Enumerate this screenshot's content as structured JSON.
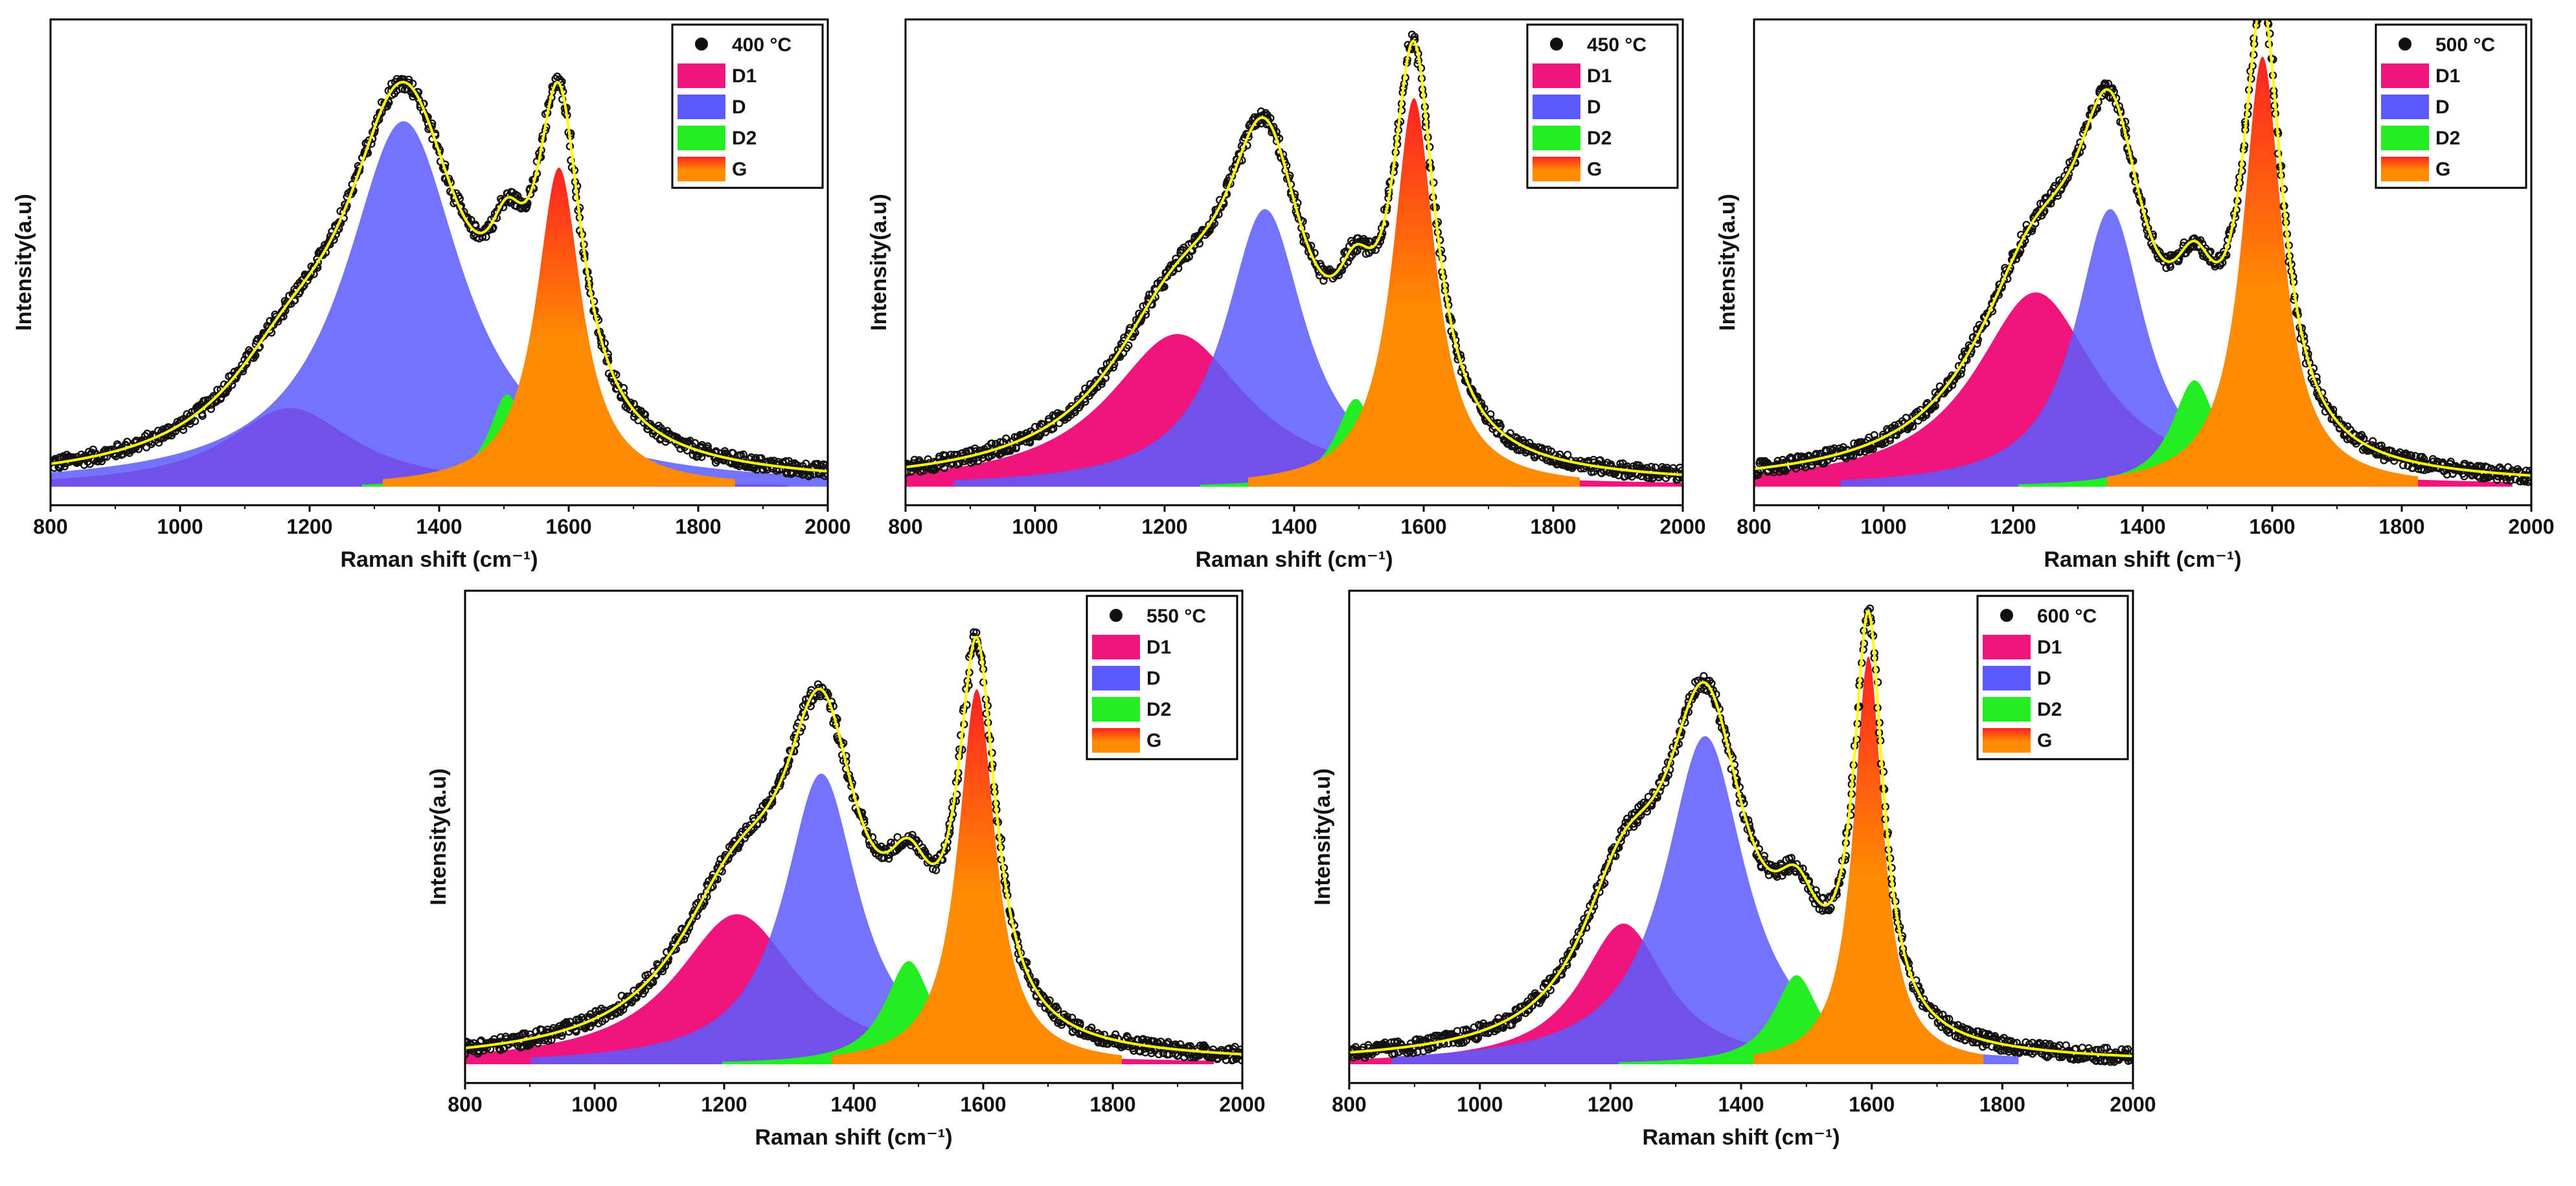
{
  "chart_data": [
    {
      "type": "area",
      "panel": "400 °C",
      "title": "",
      "xlabel": "Raman shift (cm⁻¹)",
      "ylabel": "Intensity(a.u)",
      "xlim": [
        800,
        2000
      ],
      "xticks": [
        800,
        1000,
        1200,
        1400,
        1600,
        1800,
        2000
      ],
      "ylim": [
        0,
        1.05
      ],
      "legend": [
        "400 °C",
        "D1",
        "D",
        "D2",
        "G"
      ],
      "legend_position": "top-right",
      "baseline": 0.04,
      "peaks": [
        {
          "name": "D1",
          "center": 1170,
          "height": 0.17,
          "fwhm": 240
        },
        {
          "name": "D",
          "center": 1345,
          "height": 0.79,
          "fwhm": 220
        },
        {
          "name": "D2",
          "center": 1505,
          "height": 0.2,
          "fwhm": 70
        },
        {
          "name": "G",
          "center": 1585,
          "height": 0.69,
          "fwhm": 85
        }
      ]
    },
    {
      "type": "area",
      "panel": "450 °C",
      "title": "",
      "xlabel": "Raman shift (cm⁻¹)",
      "ylabel": "Intensity(a.u)",
      "xlim": [
        800,
        2000
      ],
      "xticks": [
        800,
        1000,
        1200,
        1400,
        1600,
        1800,
        2000
      ],
      "ylim": [
        0,
        1.05
      ],
      "legend": [
        "450 °C",
        "D1",
        "D",
        "D2",
        "G"
      ],
      "legend_position": "top-right",
      "baseline": 0.04,
      "peaks": [
        {
          "name": "D1",
          "center": 1220,
          "height": 0.33,
          "fwhm": 260
        },
        {
          "name": "D",
          "center": 1355,
          "height": 0.6,
          "fwhm": 150
        },
        {
          "name": "D2",
          "center": 1495,
          "height": 0.19,
          "fwhm": 75
        },
        {
          "name": "G",
          "center": 1585,
          "height": 0.84,
          "fwhm": 80
        }
      ]
    },
    {
      "type": "area",
      "panel": "500 °C",
      "title": "",
      "xlabel": "Raman shift (cm⁻¹)",
      "ylabel": "Intensity(a.u)",
      "xlim": [
        800,
        2000
      ],
      "xticks": [
        800,
        1000,
        1200,
        1400,
        1600,
        1800,
        2000
      ],
      "ylim": [
        0,
        1.05
      ],
      "legend": [
        "500 °C",
        "D1",
        "D",
        "D2",
        "G"
      ],
      "legend_position": "top-right",
      "baseline": 0.04,
      "peaks": [
        {
          "name": "D1",
          "center": 1235,
          "height": 0.42,
          "fwhm": 230
        },
        {
          "name": "D",
          "center": 1350,
          "height": 0.6,
          "fwhm": 130
        },
        {
          "name": "D2",
          "center": 1480,
          "height": 0.23,
          "fwhm": 85
        },
        {
          "name": "G",
          "center": 1585,
          "height": 0.93,
          "fwhm": 75
        }
      ]
    },
    {
      "type": "area",
      "panel": "550 °C",
      "title": "",
      "xlabel": "Raman shift (cm⁻¹)",
      "ylabel": "Intensity(a.u)",
      "xlim": [
        800,
        2000
      ],
      "xticks": [
        800,
        1000,
        1200,
        1400,
        1600,
        1800,
        2000
      ],
      "ylim": [
        0,
        1.05
      ],
      "legend": [
        "550 °C",
        "D1",
        "D",
        "D2",
        "G"
      ],
      "legend_position": "top-right",
      "baseline": 0.04,
      "peaks": [
        {
          "name": "D1",
          "center": 1220,
          "height": 0.32,
          "fwhm": 230
        },
        {
          "name": "D",
          "center": 1350,
          "height": 0.62,
          "fwhm": 140
        },
        {
          "name": "D2",
          "center": 1485,
          "height": 0.22,
          "fwhm": 90
        },
        {
          "name": "G",
          "center": 1590,
          "height": 0.8,
          "fwhm": 70
        }
      ]
    },
    {
      "type": "area",
      "panel": "600 °C",
      "title": "",
      "xlabel": "Raman shift (cm⁻¹)",
      "ylabel": "Intensity(a.u)",
      "xlim": [
        800,
        2000
      ],
      "xticks": [
        800,
        1000,
        1200,
        1400,
        1600,
        1800,
        2000
      ],
      "ylim": [
        0,
        1.05
      ],
      "legend": [
        "600 °C",
        "D1",
        "D",
        "D2",
        "G"
      ],
      "legend_position": "top-right",
      "baseline": 0.04,
      "peaks": [
        {
          "name": "D1",
          "center": 1220,
          "height": 0.3,
          "fwhm": 160
        },
        {
          "name": "D",
          "center": 1345,
          "height": 0.7,
          "fwhm": 150
        },
        {
          "name": "D2",
          "center": 1485,
          "height": 0.19,
          "fwhm": 85
        },
        {
          "name": "G",
          "center": 1595,
          "height": 0.87,
          "fwhm": 55
        }
      ]
    }
  ],
  "colors": {
    "D1": "#f0147c",
    "D": "#5a5aff",
    "D2": "#22ee22",
    "G_top": "#ff2222",
    "G_bottom": "#ff8c00",
    "fit": "#ffff00",
    "data": "#111111"
  }
}
